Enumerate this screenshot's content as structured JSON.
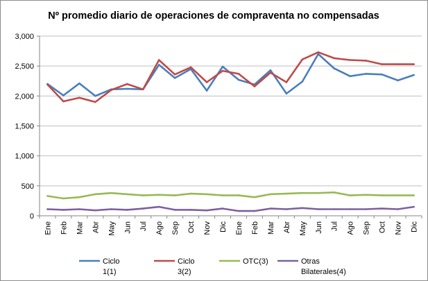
{
  "chart_data": {
    "type": "line",
    "title": "Nº promedio diario de operaciones de compraventa no compensadas",
    "xlabel": "",
    "ylabel": "",
    "ylim": [
      0,
      3000
    ],
    "yticks": [
      "0",
      "500",
      "1,000",
      "1,500",
      "2,000",
      "2,500",
      "3,000"
    ],
    "grid": true,
    "legend_position": "bottom",
    "categories": [
      "Ene",
      "Feb",
      "Mar",
      "Abr",
      "May",
      "Jun",
      "Jul",
      "Ago",
      "Sep",
      "Oct",
      "Nov",
      "Dic",
      "Ene",
      "Feb",
      "Mar",
      "Abr",
      "May",
      "Jun",
      "Jul",
      "Ago",
      "Sep",
      "Oct",
      "Nov",
      "Dic"
    ],
    "series": [
      {
        "name": "Ciclo 1(1)",
        "color": "#4a7ebb",
        "values": [
          2200,
          2010,
          2210,
          2000,
          2110,
          2120,
          2110,
          2520,
          2300,
          2450,
          2090,
          2490,
          2270,
          2190,
          2430,
          2040,
          2240,
          2700,
          2460,
          2330,
          2370,
          2360,
          2260,
          2350
        ]
      },
      {
        "name": "Ciclo 3(2)",
        "color": "#be4b48",
        "values": [
          2190,
          1910,
          1970,
          1900,
          2100,
          2200,
          2110,
          2600,
          2360,
          2480,
          2230,
          2420,
          2370,
          2160,
          2390,
          2230,
          2610,
          2730,
          2630,
          2600,
          2590,
          2530,
          2530,
          2530
        ]
      },
      {
        "name": "OTC(3)",
        "color": "#98b954",
        "values": [
          330,
          290,
          310,
          360,
          380,
          360,
          340,
          350,
          340,
          370,
          360,
          340,
          340,
          310,
          360,
          370,
          380,
          380,
          390,
          340,
          350,
          340,
          340,
          340
        ]
      },
      {
        "name": "Otras Bilaterales(4)",
        "color": "#7d60a0",
        "values": [
          110,
          100,
          110,
          90,
          110,
          100,
          120,
          150,
          100,
          100,
          90,
          120,
          80,
          80,
          120,
          110,
          130,
          110,
          110,
          110,
          110,
          120,
          110,
          150
        ]
      }
    ]
  }
}
